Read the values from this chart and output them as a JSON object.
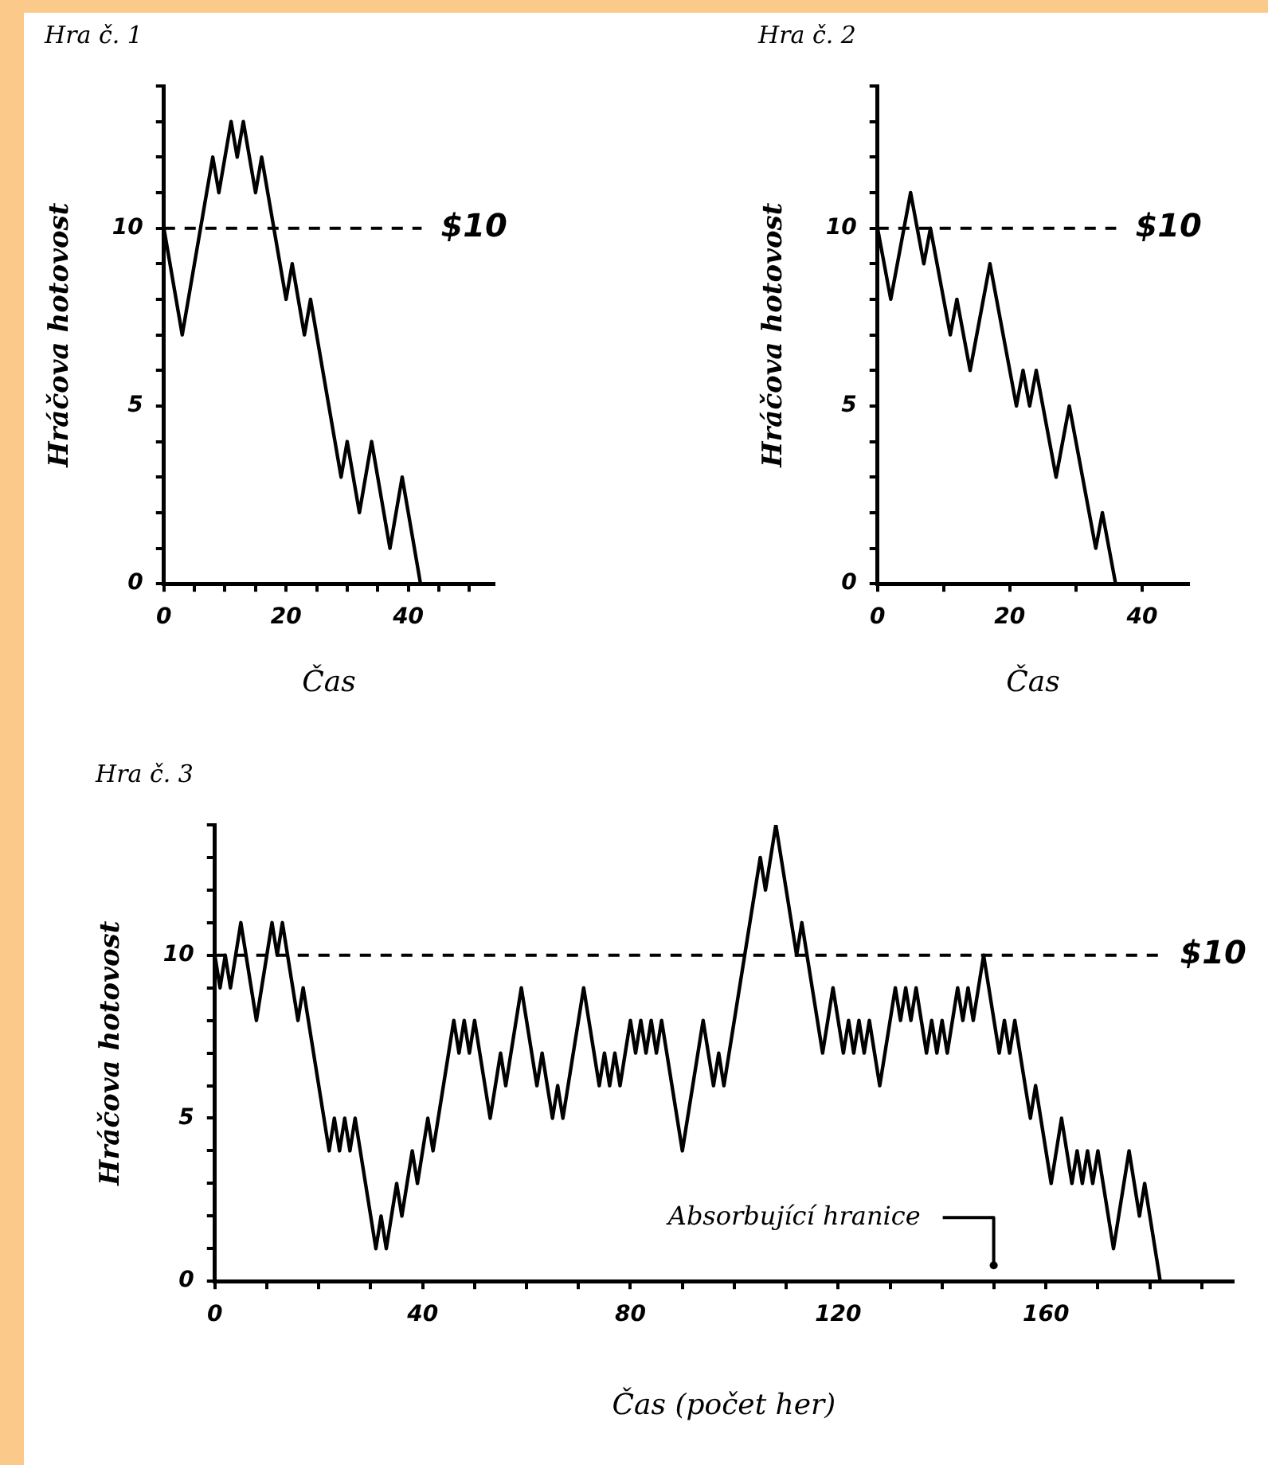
{
  "chart_data": [
    {
      "type": "line",
      "title": "Hra č. 1",
      "xlabel": "Čas",
      "ylabel": "Hráčova hotovost",
      "xlim": [
        0,
        54
      ],
      "ylim": [
        0,
        14
      ],
      "xticks": [
        0,
        {
          "value": 5,
          "label": null
        },
        {
          "value": 10,
          "label": null
        },
        {
          "value": 15,
          "label": null
        },
        20,
        {
          "value": 25,
          "label": null
        },
        {
          "value": 30,
          "label": null
        },
        {
          "value": 35,
          "label": null
        },
        40,
        {
          "value": 45,
          "label": null
        },
        {
          "value": 50,
          "label": null
        }
      ],
      "yticks": [
        0,
        {
          "value": 1,
          "label": null
        },
        {
          "value": 2,
          "label": null
        },
        {
          "value": 3,
          "label": null
        },
        {
          "value": 4,
          "label": null
        },
        5,
        {
          "value": 6,
          "label": null
        },
        {
          "value": 7,
          "label": null
        },
        {
          "value": 8,
          "label": null
        },
        {
          "value": 9,
          "label": null
        },
        10,
        {
          "value": 11,
          "label": null
        },
        {
          "value": 12,
          "label": null
        },
        {
          "value": 13,
          "label": null
        },
        {
          "value": 14,
          "label": null
        }
      ],
      "series": [
        {
          "color": "#000000",
          "x": [
            0,
            3,
            8,
            9,
            11,
            12,
            13,
            15,
            16,
            20,
            21,
            23,
            24,
            29,
            30,
            32,
            34,
            37,
            39,
            42
          ],
          "values": [
            10,
            7,
            12,
            11,
            13,
            12,
            13,
            11,
            12,
            8,
            9,
            7,
            8,
            3,
            4,
            2,
            4,
            1,
            3,
            0
          ]
        }
      ],
      "ref_lines": [
        {
          "axis": "y",
          "value": 10,
          "label": "$10",
          "color": "#000000",
          "line_style": "dashed"
        }
      ]
    },
    {
      "type": "line",
      "title": "Hra č. 2",
      "xlabel": "Čas",
      "ylabel": "Hráčova hotovost",
      "xlim": [
        0,
        47
      ],
      "ylim": [
        0,
        14
      ],
      "xticks": [
        0,
        {
          "value": 10,
          "label": null
        },
        20,
        {
          "value": 30,
          "label": null
        },
        40
      ],
      "yticks": [
        0,
        {
          "value": 1,
          "label": null
        },
        {
          "value": 2,
          "label": null
        },
        {
          "value": 3,
          "label": null
        },
        {
          "value": 4,
          "label": null
        },
        5,
        {
          "value": 6,
          "label": null
        },
        {
          "value": 7,
          "label": null
        },
        {
          "value": 8,
          "label": null
        },
        {
          "value": 9,
          "label": null
        },
        10,
        {
          "value": 11,
          "label": null
        },
        {
          "value": 12,
          "label": null
        },
        {
          "value": 13,
          "label": null
        },
        {
          "value": 14,
          "label": null
        }
      ],
      "series": [
        {
          "color": "#000000",
          "x": [
            0,
            2,
            5,
            7,
            8,
            11,
            12,
            14,
            17,
            21,
            22,
            23,
            24,
            27,
            29,
            33,
            34,
            36
          ],
          "values": [
            10,
            8,
            11,
            9,
            10,
            7,
            8,
            6,
            9,
            5,
            6,
            5,
            6,
            3,
            5,
            1,
            2,
            0
          ]
        }
      ],
      "ref_lines": [
        {
          "axis": "y",
          "value": 10,
          "label": "$10",
          "color": "#000000",
          "line_style": "dashed"
        }
      ]
    },
    {
      "type": "line",
      "title": "Hra č. 3",
      "xlabel": "Čas (počet her)",
      "ylabel": "Hráčova hotovost",
      "xlim": [
        0,
        196
      ],
      "ylim": [
        0,
        14
      ],
      "xticks": [
        0,
        {
          "value": 10,
          "label": null
        },
        {
          "value": 20,
          "label": null
        },
        {
          "value": 30,
          "label": null
        },
        40,
        {
          "value": 50,
          "label": null
        },
        {
          "value": 60,
          "label": null
        },
        {
          "value": 70,
          "label": null
        },
        80,
        {
          "value": 90,
          "label": null
        },
        {
          "value": 100,
          "label": null
        },
        {
          "value": 110,
          "label": null
        },
        120,
        {
          "value": 130,
          "label": null
        },
        {
          "value": 140,
          "label": null
        },
        {
          "value": 150,
          "label": null
        },
        160,
        {
          "value": 170,
          "label": null
        },
        {
          "value": 180,
          "label": null
        },
        {
          "value": 190,
          "label": null
        }
      ],
      "yticks": [
        0,
        {
          "value": 1,
          "label": null
        },
        {
          "value": 2,
          "label": null
        },
        {
          "value": 3,
          "label": null
        },
        {
          "value": 4,
          "label": null
        },
        5,
        {
          "value": 6,
          "label": null
        },
        {
          "value": 7,
          "label": null
        },
        {
          "value": 8,
          "label": null
        },
        {
          "value": 9,
          "label": null
        },
        10,
        {
          "value": 11,
          "label": null
        },
        {
          "value": 12,
          "label": null
        },
        {
          "value": 13,
          "label": null
        },
        {
          "value": 14,
          "label": null
        }
      ],
      "series": [
        {
          "color": "#000000",
          "x": [
            0,
            1,
            2,
            3,
            5,
            8,
            11,
            12,
            13,
            16,
            17,
            22,
            23,
            24,
            25,
            26,
            27,
            31,
            32,
            33,
            35,
            36,
            38,
            39,
            41,
            42,
            46,
            47,
            48,
            49,
            50,
            53,
            55,
            56,
            59,
            62,
            63,
            65,
            66,
            67,
            71,
            74,
            75,
            76,
            77,
            78,
            80,
            81,
            82,
            83,
            84,
            85,
            86,
            90,
            94,
            96,
            97,
            98,
            105,
            106,
            108,
            112,
            113,
            117,
            119,
            121,
            122,
            123,
            124,
            125,
            126,
            128,
            131,
            132,
            133,
            134,
            135,
            137,
            138,
            139,
            140,
            141,
            143,
            144,
            145,
            146,
            148,
            151,
            152,
            153,
            154,
            157,
            158,
            161,
            163,
            165,
            166,
            167,
            168,
            169,
            170,
            173,
            176,
            178,
            179,
            182
          ],
          "values": [
            10,
            9,
            10,
            9,
            11,
            8,
            11,
            10,
            11,
            8,
            9,
            4,
            5,
            4,
            5,
            4,
            5,
            1,
            2,
            1,
            3,
            2,
            4,
            3,
            5,
            4,
            8,
            7,
            8,
            7,
            8,
            5,
            7,
            6,
            9,
            6,
            7,
            5,
            6,
            5,
            9,
            6,
            7,
            6,
            7,
            6,
            8,
            7,
            8,
            7,
            8,
            7,
            8,
            4,
            8,
            6,
            7,
            6,
            13,
            12,
            14,
            10,
            11,
            7,
            9,
            7,
            8,
            7,
            8,
            7,
            8,
            6,
            9,
            8,
            9,
            8,
            9,
            7,
            8,
            7,
            8,
            7,
            9,
            8,
            9,
            8,
            10,
            7,
            8,
            7,
            8,
            5,
            6,
            3,
            5,
            3,
            4,
            3,
            4,
            3,
            4,
            1,
            4,
            2,
            3,
            0
          ]
        }
      ],
      "ref_lines": [
        {
          "axis": "y",
          "value": 10,
          "label": "$10",
          "color": "#000000",
          "line_style": "dashed"
        }
      ],
      "annotations": [
        "Absorbující hranice"
      ]
    }
  ]
}
